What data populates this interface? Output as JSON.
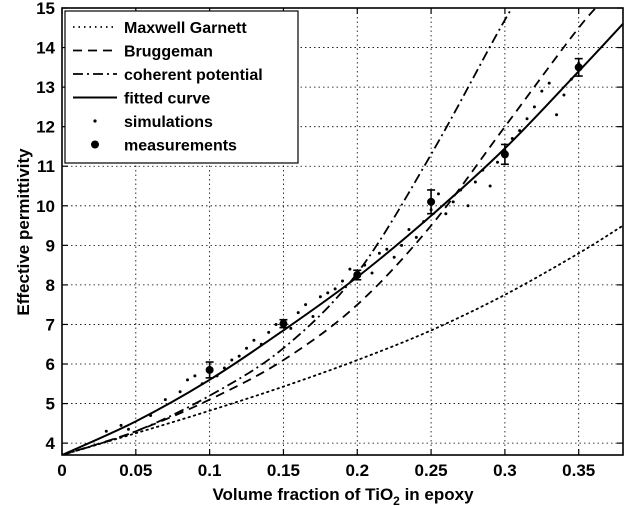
{
  "chart_data": {
    "type": "line",
    "title": "",
    "xlabel": "Volume fraction of TiO2 in epoxy",
    "xlabel_parts": {
      "pre": "Volume fraction of TiO",
      "sub": "2",
      "post": " in epoxy"
    },
    "ylabel": "Effective permittivity",
    "xlim": [
      0,
      0.38
    ],
    "ylim": [
      3.7,
      15
    ],
    "grid": true,
    "legend_position": "top-left",
    "x_ticks": [
      0,
      0.05,
      0.1,
      0.15,
      0.2,
      0.25,
      0.3,
      0.35
    ],
    "x_tick_labels": [
      "0",
      "0.05",
      "0.1",
      "0.15",
      "0.2",
      "0.25",
      "0.3",
      "0.35"
    ],
    "y_ticks": [
      4,
      5,
      6,
      7,
      8,
      9,
      10,
      11,
      12,
      13,
      14,
      15
    ],
    "y_tick_labels": [
      "4",
      "5",
      "6",
      "7",
      "8",
      "9",
      "10",
      "11",
      "12",
      "13",
      "14",
      "15"
    ],
    "series": [
      {
        "name": "Maxwell Garnett",
        "style": "dotted",
        "x": [
          0,
          0.05,
          0.1,
          0.15,
          0.2,
          0.25,
          0.3,
          0.35,
          0.38
        ],
        "y": [
          3.7,
          4.25,
          4.82,
          5.43,
          6.1,
          6.85,
          7.75,
          8.8,
          9.5
        ]
      },
      {
        "name": "Bruggeman",
        "style": "dashed",
        "x": [
          0,
          0.05,
          0.1,
          0.15,
          0.2,
          0.25,
          0.3,
          0.35,
          0.37
        ],
        "y": [
          3.7,
          4.3,
          5.1,
          6.1,
          7.5,
          9.5,
          12.0,
          14.5,
          15.3
        ]
      },
      {
        "name": "coherent potential",
        "style": "dashdot",
        "x": [
          0,
          0.05,
          0.1,
          0.15,
          0.2,
          0.25,
          0.3,
          0.33
        ],
        "y": [
          3.7,
          4.3,
          5.2,
          6.4,
          8.3,
          11.3,
          14.7,
          16.5
        ]
      },
      {
        "name": "fitted curve",
        "style": "solid",
        "x": [
          0,
          0.05,
          0.1,
          0.15,
          0.2,
          0.25,
          0.3,
          0.35,
          0.38
        ],
        "y": [
          3.7,
          4.55,
          5.6,
          6.85,
          8.2,
          9.75,
          11.45,
          13.4,
          14.6
        ]
      },
      {
        "name": "simulations",
        "style": "points",
        "x": [
          0.03,
          0.04,
          0.045,
          0.06,
          0.07,
          0.08,
          0.085,
          0.09,
          0.095,
          0.1,
          0.105,
          0.11,
          0.115,
          0.12,
          0.125,
          0.13,
          0.135,
          0.14,
          0.145,
          0.15,
          0.155,
          0.16,
          0.165,
          0.17,
          0.175,
          0.18,
          0.185,
          0.19,
          0.195,
          0.2,
          0.205,
          0.21,
          0.215,
          0.22,
          0.225,
          0.23,
          0.235,
          0.24,
          0.245,
          0.25,
          0.255,
          0.26,
          0.265,
          0.27,
          0.275,
          0.28,
          0.285,
          0.29,
          0.295,
          0.3,
          0.305,
          0.31,
          0.315,
          0.32,
          0.325,
          0.33,
          0.335,
          0.34,
          0.345,
          0.35
        ],
        "y": [
          4.3,
          4.45,
          4.35,
          4.7,
          5.1,
          5.3,
          5.6,
          5.7,
          5.5,
          5.9,
          5.7,
          5.9,
          6.1,
          6.2,
          6.4,
          6.6,
          6.5,
          6.8,
          7.0,
          7.1,
          6.9,
          7.3,
          7.5,
          7.2,
          7.7,
          7.8,
          7.9,
          8.1,
          8.4,
          8.2,
          8.5,
          8.3,
          8.8,
          8.9,
          8.7,
          9.0,
          9.4,
          9.2,
          9.6,
          9.9,
          10.3,
          9.8,
          10.1,
          10.4,
          10.0,
          10.6,
          10.9,
          10.5,
          11.1,
          11.4,
          11.7,
          11.9,
          12.2,
          12.5,
          12.9,
          13.1,
          12.3,
          12.8,
          13.2,
          13.6
        ]
      }
    ],
    "measurements": {
      "name": "measurements",
      "x": [
        0.1,
        0.15,
        0.2,
        0.25,
        0.3,
        0.35
      ],
      "y": [
        5.85,
        7.02,
        8.25,
        10.1,
        11.3,
        13.5
      ],
      "err": [
        0.2,
        0.1,
        0.12,
        0.3,
        0.25,
        0.22
      ]
    }
  }
}
